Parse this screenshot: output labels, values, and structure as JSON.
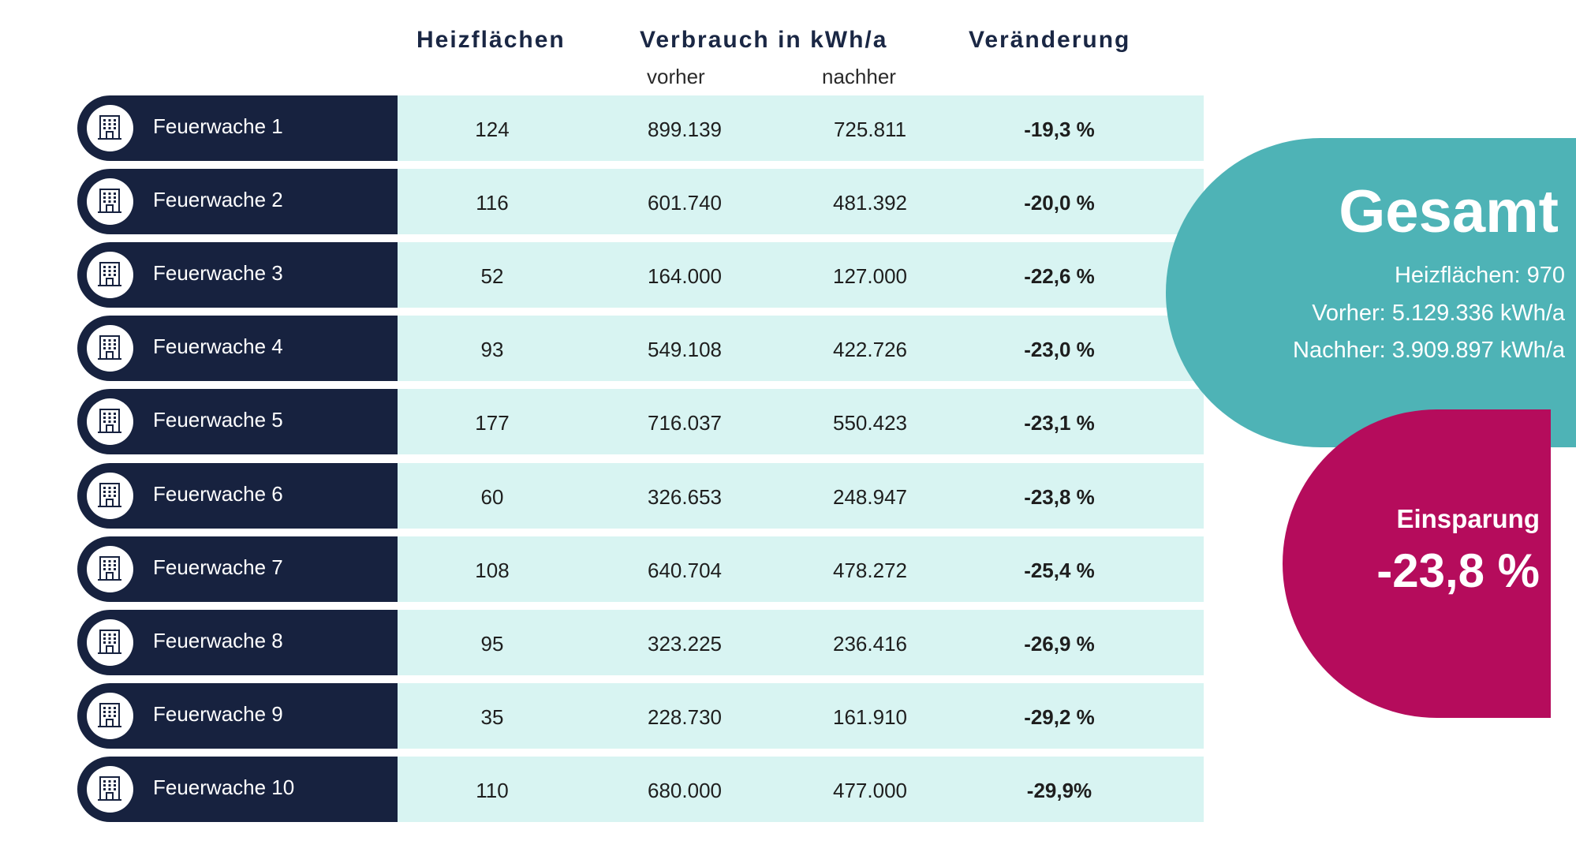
{
  "header": {
    "heizflaechen": "Heizflächen",
    "verbrauch": "Verbrauch in kWh/a",
    "vorher": "vorher",
    "nachher": "nachher",
    "veraenderung": "Veränderung"
  },
  "icon": "building-icon",
  "rows": [
    {
      "name": "Feuerwache 1",
      "heizflaechen": "124",
      "vorher": "899.139",
      "nachher": "725.811",
      "veraenderung": "-19,3 %"
    },
    {
      "name": "Feuerwache 2",
      "heizflaechen": "116",
      "vorher": "601.740",
      "nachher": "481.392",
      "veraenderung": "-20,0 %"
    },
    {
      "name": "Feuerwache 3",
      "heizflaechen": "52",
      "vorher": "164.000",
      "nachher": "127.000",
      "veraenderung": "-22,6 %"
    },
    {
      "name": "Feuerwache 4",
      "heizflaechen": "93",
      "vorher": "549.108",
      "nachher": "422.726",
      "veraenderung": "-23,0 %"
    },
    {
      "name": "Feuerwache 5",
      "heizflaechen": "177",
      "vorher": "716.037",
      "nachher": "550.423",
      "veraenderung": "-23,1 %"
    },
    {
      "name": "Feuerwache 6",
      "heizflaechen": "60",
      "vorher": "326.653",
      "nachher": "248.947",
      "veraenderung": "-23,8 %"
    },
    {
      "name": "Feuerwache 7",
      "heizflaechen": "108",
      "vorher": "640.704",
      "nachher": "478.272",
      "veraenderung": "-25,4 %"
    },
    {
      "name": "Feuerwache 8",
      "heizflaechen": "95",
      "vorher": "323.225",
      "nachher": "236.416",
      "veraenderung": "-26,9 %"
    },
    {
      "name": "Feuerwache 9",
      "heizflaechen": "35",
      "vorher": "228.730",
      "nachher": "161.910",
      "veraenderung": "-29,2 %"
    },
    {
      "name": "Feuerwache 10",
      "heizflaechen": "110",
      "vorher": "680.000",
      "nachher": "477.000",
      "veraenderung": "-29,9%"
    }
  ],
  "gesamt": {
    "title": "Gesamt",
    "heizflaechen": "Heizflächen: 970",
    "vorher": "Vorher: 5.129.336  kWh/a",
    "nachher": "Nachher: 3.909.897 kWh/a"
  },
  "einsparung": {
    "label": "Einsparung",
    "value": "-23,8 %"
  },
  "colors": {
    "navy": "#17223f",
    "row_bg": "#d8f4f2",
    "teal": "#4eb3b6",
    "magenta": "#b50c5c"
  }
}
